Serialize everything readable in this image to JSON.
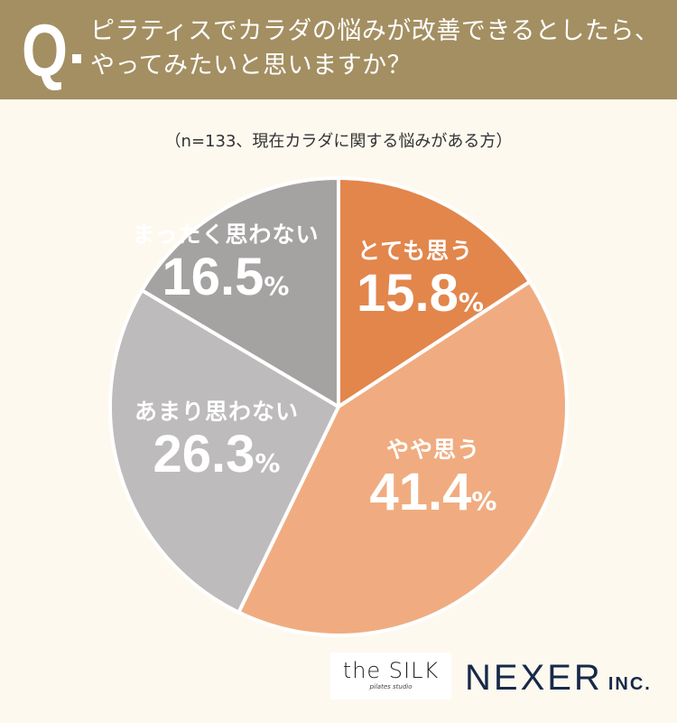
{
  "header": {
    "q_mark": "Q",
    "question_line1": "ピラティスでカラダの悩みが改善できるとしたら、",
    "question_line2": "やってみたいと思いますか？"
  },
  "note": "（n=133、現在カラダに関する悩みがある方）",
  "chart_data": {
    "type": "pie",
    "start": "top, clockwise",
    "categories": [
      "とても思う",
      "やや思う",
      "あまり思わない",
      "まったく思わない"
    ],
    "values": [
      15.8,
      41.4,
      26.3,
      16.5
    ],
    "unit": "%",
    "colors": [
      "#e2864c",
      "#f0ac80",
      "#bdbbbb",
      "#a5a2a2"
    ]
  },
  "logos": {
    "silk": "the SILK",
    "silk_sub": "pilates studio",
    "nexer": "NEXER",
    "nexer_inc": "INC."
  }
}
